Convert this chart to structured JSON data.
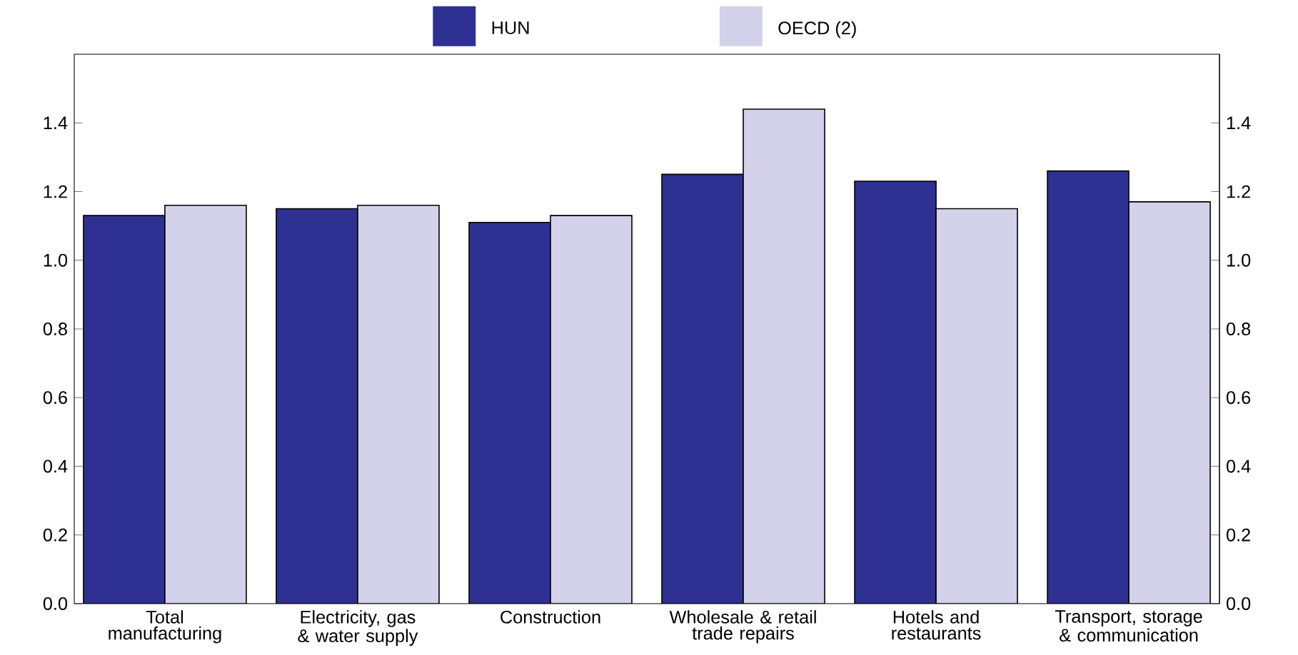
{
  "chart_data": {
    "type": "bar",
    "categories": [
      "Total manufacturing",
      "Electricity, gas & water supply",
      "Construction",
      "Wholesale & retail trade repairs",
      "Hotels and restaurants",
      "Transport, storage & communication"
    ],
    "series": [
      {
        "name": "HUN",
        "color": "#2e3192",
        "values": [
          1.13,
          1.15,
          1.11,
          1.25,
          1.23,
          1.26
        ]
      },
      {
        "name": "OECD (2)",
        "color": "#d4d2ea",
        "values": [
          1.16,
          1.16,
          1.13,
          1.44,
          1.15,
          1.17
        ]
      }
    ],
    "ylim": [
      0,
      1.6
    ],
    "yticks": [
      {
        "value": 0,
        "label": "0.0"
      },
      0.2,
      0.4,
      0.6,
      0.8,
      {
        "value": 1,
        "label": "1.0"
      },
      1.2,
      1.4
    ],
    "y2lim": [
      0,
      1.6
    ],
    "y2ticks": [
      {
        "value": 0,
        "label": "0.0"
      },
      0.2,
      0.4,
      0.6,
      0.8,
      {
        "value": 1,
        "label": "1.0"
      },
      1.2,
      1.4
    ],
    "legend": "top",
    "grid": false
  }
}
